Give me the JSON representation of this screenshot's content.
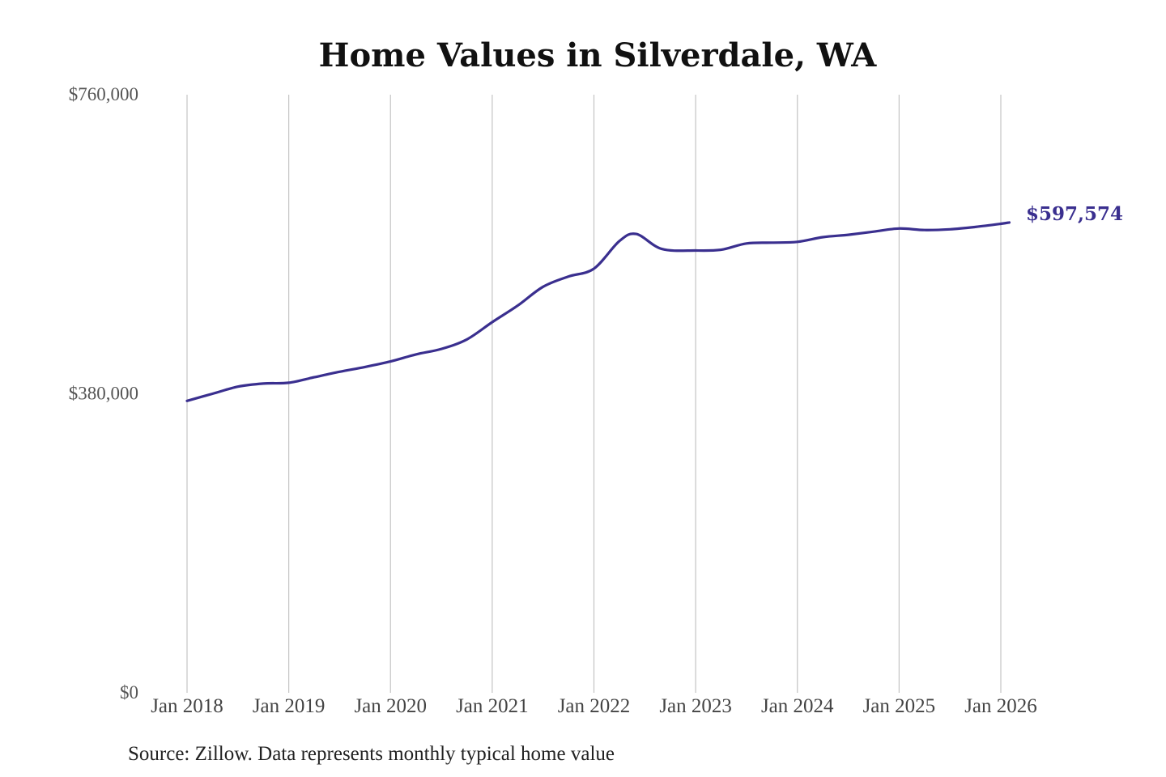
{
  "chart_data": {
    "type": "line",
    "title": "Home Values in Silverdale, WA",
    "xlabel": "",
    "ylabel": "",
    "source": "Source: Zillow. Data represents monthly typical home value",
    "x_ticks": [
      "Jan 2018",
      "Jan 2019",
      "Jan 2020",
      "Jan 2021",
      "Jan 2022",
      "Jan 2023",
      "Jan 2024",
      "Jan 2025",
      "Jan 2026"
    ],
    "y_ticks": [
      "$0",
      "$380,000",
      "$760,000"
    ],
    "y_tick_values": [
      0,
      380000,
      760000
    ],
    "ylim": [
      0,
      760000
    ],
    "xlim": [
      "2018-01",
      "2026-01"
    ],
    "grid": "vertical",
    "line_color": "#3a2f8f",
    "end_label": "$597,574",
    "series": [
      {
        "x": [
          "2018-01",
          "2018-04",
          "2018-07",
          "2018-10",
          "2019-01",
          "2019-04",
          "2019-07",
          "2019-10",
          "2020-01",
          "2020-04",
          "2020-07",
          "2020-10",
          "2021-01",
          "2021-04",
          "2021-07",
          "2021-10",
          "2022-01",
          "2022-04",
          "2022-06",
          "2022-09",
          "2023-01",
          "2023-04",
          "2023-07",
          "2023-10",
          "2024-01",
          "2024-04",
          "2024-07",
          "2024-10",
          "2025-01",
          "2025-04",
          "2025-07",
          "2025-10",
          "2026-01",
          "2026-02"
        ],
        "y": [
          371000,
          380000,
          389000,
          393000,
          394000,
          401000,
          408000,
          414000,
          421000,
          430000,
          437000,
          449000,
          471000,
          492000,
          516000,
          529000,
          539000,
          574000,
          583000,
          564000,
          562000,
          563000,
          571000,
          572000,
          573000,
          579000,
          582000,
          586000,
          590000,
          588000,
          589000,
          592000,
          596000,
          597574
        ]
      }
    ]
  }
}
